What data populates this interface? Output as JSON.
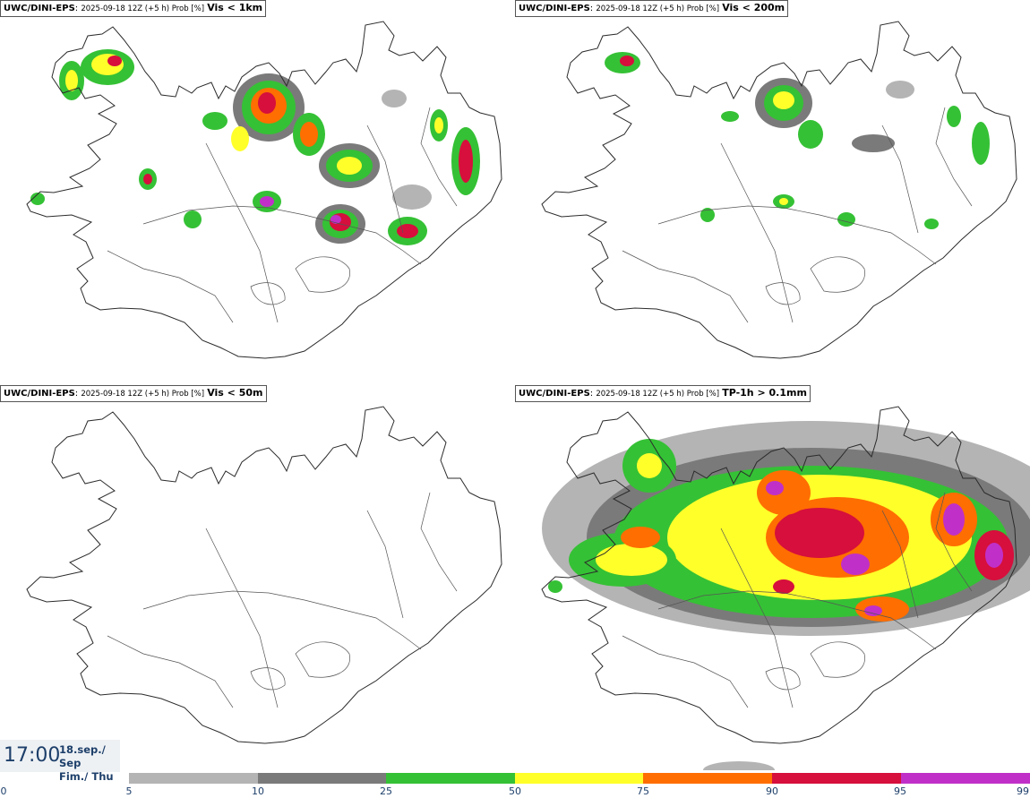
{
  "panels": [
    {
      "model": "UWC/DINI-EPS",
      "meta": "2025-09-18 12Z (+5 h) Prob [%]",
      "threshold": "Vis < 1km"
    },
    {
      "model": "UWC/DINI-EPS",
      "meta": "2025-09-18 12Z (+5 h) Prob [%]",
      "threshold": "Vis < 200m"
    },
    {
      "model": "UWC/DINI-EPS",
      "meta": "2025-09-18 12Z (+5 h) Prob [%]",
      "threshold": "Vis < 50m"
    },
    {
      "model": "UWC/DINI-EPS",
      "meta": "2025-09-18 12Z (+5 h) Prob [%]",
      "threshold": "TP-1h > 0.1mm"
    }
  ],
  "valid_time": {
    "time": "17:00",
    "date": "18.sep./ Sep",
    "day": "Fim./ Thu"
  },
  "colorbar": {
    "ticks": [
      "0",
      "5",
      "10",
      "25",
      "50",
      "75",
      "90",
      "95",
      "99"
    ],
    "colors": [
      "#b4b4b4",
      "#7a7a7a",
      "#35c135",
      "#ffff2a",
      "#ff6e00",
      "#d60f3c",
      "#c030c8",
      "#f3c6f3"
    ]
  }
}
